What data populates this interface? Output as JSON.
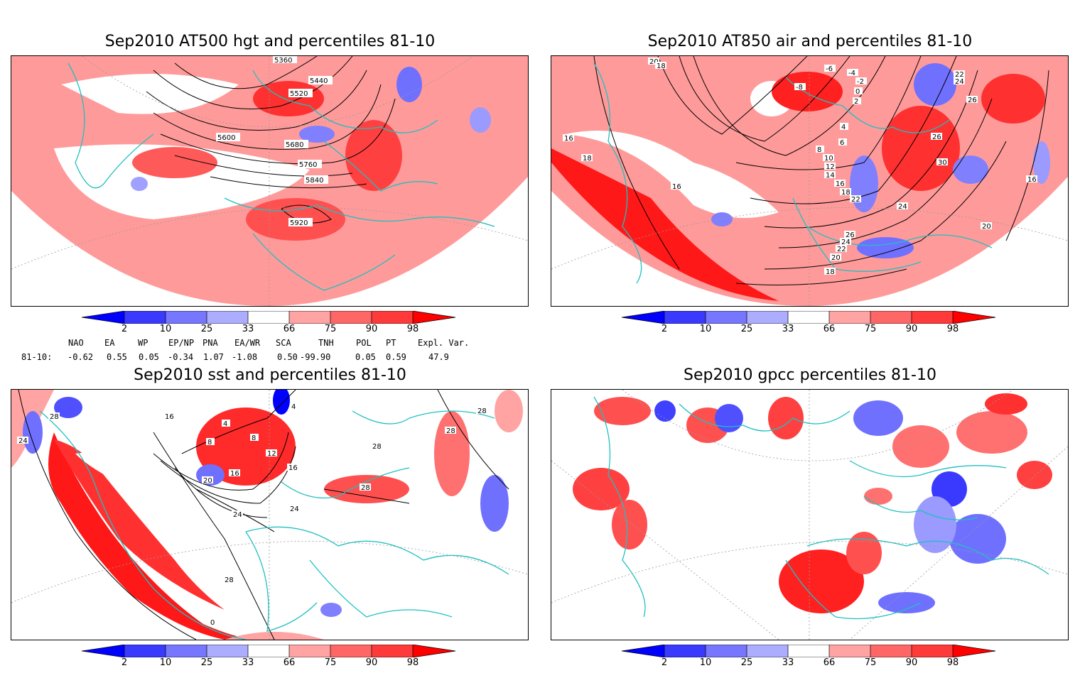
{
  "panels": [
    {
      "id": "p1",
      "title": "Sep2010 AT500 hgt and percentiles 81-10",
      "contour_labels": [
        "5360",
        "5440",
        "5520",
        "5600",
        "5680",
        "5760",
        "5840",
        "5920"
      ]
    },
    {
      "id": "p2",
      "title": "Sep2010 AT850 air and percentiles 81-10",
      "contour_labels": [
        "20",
        "18",
        "-6",
        "-4",
        "-2",
        "0",
        "2",
        "-8",
        "22",
        "24",
        "26",
        "4",
        "6",
        "8",
        "10",
        "12",
        "14",
        "16",
        "18",
        "22",
        "24",
        "26",
        "30",
        "16",
        "18",
        "16",
        "26",
        "24",
        "22",
        "20",
        "18",
        "20",
        "16"
      ]
    },
    {
      "id": "p3",
      "title": "Sep2010 sst and percentiles 81-10",
      "contour_labels": [
        "28",
        "24",
        "28",
        "16",
        "4",
        "8",
        "8",
        "12",
        "16",
        "20",
        "16",
        "24",
        "24",
        "28",
        "28",
        "28",
        "28",
        "0",
        "4"
      ]
    },
    {
      "id": "p4",
      "title": "Sep2010 gpcc percentiles 81-10",
      "contour_labels": []
    }
  ],
  "colorbar": {
    "ticks": [
      "2",
      "10",
      "25",
      "33",
      "66",
      "75",
      "90",
      "98"
    ],
    "colors": {
      "b1": "#0000ff",
      "b2": "#3a3aff",
      "b3": "#7676ff",
      "b4": "#adadff",
      "r1": "#ffa3a3",
      "r2": "#ff6666",
      "r3": "#ff3a3a",
      "r4": "#ff0000"
    }
  },
  "teleconnections": {
    "headers": [
      "NAO",
      "EA",
      "WP",
      "EP/NP",
      "PNA",
      "EA/WR",
      "SCA",
      "TNH",
      "POL",
      "PT",
      "Expl. Var."
    ],
    "row_label": "81-10:",
    "values": [
      "-0.62",
      "0.55",
      "0.05",
      "-0.34",
      "1.07",
      "-1.08",
      "0.50",
      "-99.90",
      "0.05",
      "0.59",
      "47.9"
    ]
  },
  "colors": {
    "coast": "#20c0c0",
    "contour": "#000000"
  }
}
